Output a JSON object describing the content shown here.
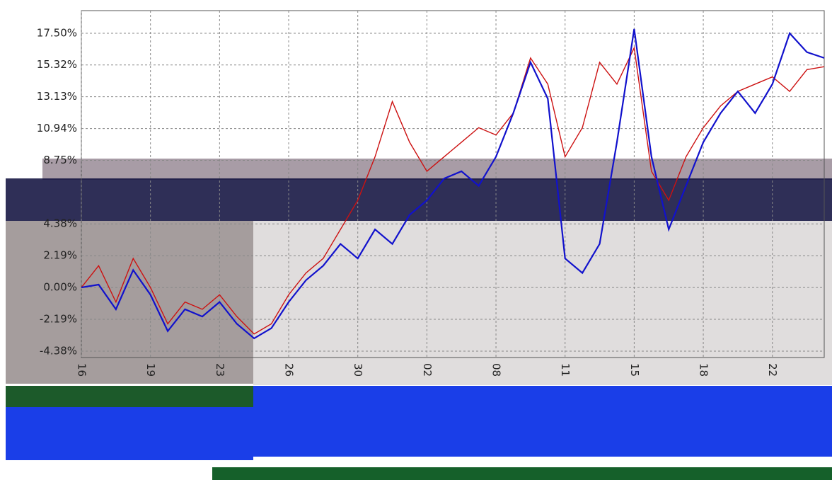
{
  "chart_data": {
    "type": "line",
    "categories": [
      "16",
      null,
      null,
      null,
      "19",
      null,
      null,
      null,
      "23",
      null,
      null,
      null,
      "26",
      null,
      null,
      null,
      "30",
      null,
      null,
      null,
      "02",
      null,
      null,
      null,
      "08",
      null,
      null,
      null,
      "11",
      null,
      null,
      null,
      "15",
      null,
      null,
      null,
      "18",
      null,
      null,
      null,
      "22",
      null,
      null,
      null
    ],
    "series": [
      {
        "color": "#cc1111",
        "values": [
          0,
          1.5,
          -1,
          2,
          0,
          -2.5,
          -1,
          -1.5,
          -0.5,
          -2,
          -3.2,
          -2.5,
          -0.5,
          1,
          2,
          4,
          6,
          9,
          12.8,
          10,
          8,
          9,
          10,
          11,
          10.5,
          12,
          15.8,
          14,
          9,
          11,
          15.5,
          14,
          16.5,
          8,
          6,
          9,
          11,
          12.5,
          13.5,
          14,
          14.5,
          13.5,
          15,
          15.2
        ]
      },
      {
        "color": "#1111cc",
        "values": [
          0,
          0.2,
          -1.5,
          1.2,
          -0.5,
          -3,
          -1.5,
          -2,
          -1,
          -2.5,
          -3.5,
          -2.8,
          -1,
          0.5,
          1.5,
          3,
          2,
          4,
          3,
          5,
          6,
          7.5,
          8,
          7,
          9,
          12,
          15.5,
          13,
          2,
          1,
          3,
          10,
          17.8,
          9,
          4,
          7,
          10,
          12,
          13.5,
          12,
          14,
          17.5,
          16.2,
          15.8
        ]
      }
    ],
    "ylim": [
      -4.82,
      19.06
    ],
    "yticks": [
      {
        "value": -4.38,
        "label": "-4.38%"
      },
      {
        "value": -2.19,
        "label": "-2.19%"
      },
      {
        "value": 0,
        "label": "0.00%"
      },
      {
        "value": 2.19,
        "label": "2.19%"
      },
      {
        "value": 4.38,
        "label": "4.38%"
      },
      {
        "value": 8.75,
        "label": "8.75%"
      },
      {
        "value": 10.94,
        "label": "10.94%"
      },
      {
        "value": 13.13,
        "label": "13.13%"
      },
      {
        "value": 15.32,
        "label": "15.32%"
      },
      {
        "value": 17.5,
        "label": "17.50%"
      }
    ],
    "grid": true
  }
}
